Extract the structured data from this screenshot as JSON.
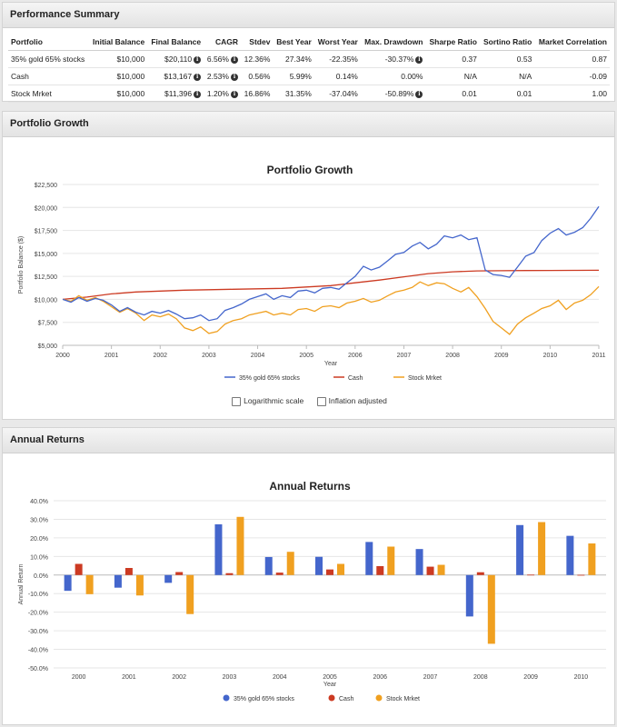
{
  "performance": {
    "title": "Performance Summary",
    "headers": [
      "Portfolio",
      "Initial Balance",
      "Final Balance",
      "CAGR",
      "Stdev",
      "Best Year",
      "Worst Year",
      "Max. Drawdown",
      "Sharpe Ratio",
      "Sortino Ratio",
      "Market Correlation"
    ],
    "rows": [
      {
        "portfolio": "35% gold 65% stocks",
        "initial": "$10,000",
        "final": "$20,110",
        "cagr": "6.56%",
        "stdev": "12.36%",
        "best": "27.34%",
        "worst": "-22.35%",
        "drawdown": "-30.37%",
        "sharpe": "0.37",
        "sortino": "0.53",
        "correlation": "0.87"
      },
      {
        "portfolio": "Cash",
        "initial": "$10,000",
        "final": "$13,167",
        "cagr": "2.53%",
        "stdev": "0.56%",
        "best": "5.99%",
        "worst": "0.14%",
        "drawdown": "0.00%",
        "sharpe": "N/A",
        "sortino": "N/A",
        "correlation": "-0.09"
      },
      {
        "portfolio": "Stock Mrket",
        "initial": "$10,000",
        "final": "$11,396",
        "cagr": "1.20%",
        "stdev": "16.86%",
        "best": "31.35%",
        "worst": "-37.04%",
        "drawdown": "-50.89%",
        "sharpe": "0.01",
        "sortino": "0.01",
        "correlation": "1.00"
      }
    ],
    "info_icon": "info-icon"
  },
  "growth_panel": {
    "header": "Portfolio Growth",
    "options": {
      "log_scale": "Logarithmic scale",
      "inflation": "Inflation adjusted"
    }
  },
  "annual_panel": {
    "header": "Annual Returns"
  },
  "colors": {
    "gold_stocks": "#4466cc",
    "cash": "#cc3a22",
    "stock": "#f0a020"
  },
  "chart_data": [
    {
      "type": "line",
      "title": "Portfolio Growth",
      "xlabel": "Year",
      "ylabel": "Portfolio Balance ($)",
      "xlim": [
        2000,
        2011
      ],
      "ylim": [
        5000,
        22500
      ],
      "x_ticks": [
        "2000",
        "2001",
        "2002",
        "2003",
        "2004",
        "2005",
        "2006",
        "2007",
        "2008",
        "2009",
        "2010",
        "2011"
      ],
      "y_ticks": [
        "$5,000",
        "$7,500",
        "$10,000",
        "$12,500",
        "$15,000",
        "$17,500",
        "$20,000",
        "$22,500"
      ],
      "legend": "bottom",
      "series": [
        {
          "name": "35% gold 65% stocks",
          "color": "#4466cc",
          "points": [
            [
              2000,
              10000
            ],
            [
              2000.17,
              9700
            ],
            [
              2000.33,
              10200
            ],
            [
              2000.5,
              9800
            ],
            [
              2000.67,
              10100
            ],
            [
              2000.83,
              9900
            ],
            [
              2001,
              9400
            ],
            [
              2001.17,
              8700
            ],
            [
              2001.33,
              9100
            ],
            [
              2001.5,
              8600
            ],
            [
              2001.67,
              8300
            ],
            [
              2001.83,
              8700
            ],
            [
              2002,
              8500
            ],
            [
              2002.17,
              8800
            ],
            [
              2002.33,
              8400
            ],
            [
              2002.5,
              7900
            ],
            [
              2002.67,
              8000
            ],
            [
              2002.83,
              8300
            ],
            [
              2003,
              7700
            ],
            [
              2003.17,
              7900
            ],
            [
              2003.33,
              8800
            ],
            [
              2003.5,
              9100
            ],
            [
              2003.67,
              9500
            ],
            [
              2003.83,
              10000
            ],
            [
              2004,
              10300
            ],
            [
              2004.17,
              10600
            ],
            [
              2004.33,
              10000
            ],
            [
              2004.5,
              10400
            ],
            [
              2004.67,
              10200
            ],
            [
              2004.83,
              10900
            ],
            [
              2005,
              11000
            ],
            [
              2005.17,
              10700
            ],
            [
              2005.33,
              11200
            ],
            [
              2005.5,
              11300
            ],
            [
              2005.67,
              11100
            ],
            [
              2005.83,
              11800
            ],
            [
              2006,
              12500
            ],
            [
              2006.17,
              13600
            ],
            [
              2006.33,
              13200
            ],
            [
              2006.5,
              13500
            ],
            [
              2006.67,
              14200
            ],
            [
              2006.83,
              14900
            ],
            [
              2007,
              15100
            ],
            [
              2007.17,
              15800
            ],
            [
              2007.33,
              16200
            ],
            [
              2007.5,
              15500
            ],
            [
              2007.67,
              16000
            ],
            [
              2007.83,
              16900
            ],
            [
              2008,
              16700
            ],
            [
              2008.17,
              17000
            ],
            [
              2008.33,
              16500
            ],
            [
              2008.5,
              16700
            ],
            [
              2008.67,
              13200
            ],
            [
              2008.83,
              12700
            ],
            [
              2009,
              12600
            ],
            [
              2009.17,
              12400
            ],
            [
              2009.33,
              13500
            ],
            [
              2009.5,
              14700
            ],
            [
              2009.67,
              15100
            ],
            [
              2009.83,
              16400
            ],
            [
              2010,
              17200
            ],
            [
              2010.17,
              17700
            ],
            [
              2010.33,
              17000
            ],
            [
              2010.5,
              17300
            ],
            [
              2010.67,
              17800
            ],
            [
              2010.83,
              18800
            ],
            [
              2011,
              20110
            ]
          ]
        },
        {
          "name": "Cash",
          "color": "#cc3a22",
          "points": [
            [
              2000,
              10000
            ],
            [
              2000.5,
              10250
            ],
            [
              2001,
              10600
            ],
            [
              2001.5,
              10800
            ],
            [
              2002,
              10900
            ],
            [
              2002.5,
              11000
            ],
            [
              2003,
              11050
            ],
            [
              2003.5,
              11100
            ],
            [
              2004,
              11150
            ],
            [
              2004.5,
              11200
            ],
            [
              2005,
              11350
            ],
            [
              2005.5,
              11500
            ],
            [
              2006,
              11800
            ],
            [
              2006.5,
              12100
            ],
            [
              2007,
              12450
            ],
            [
              2007.5,
              12800
            ],
            [
              2008,
              13000
            ],
            [
              2008.5,
              13100
            ],
            [
              2009,
              13120
            ],
            [
              2009.5,
              13140
            ],
            [
              2010,
              13150
            ],
            [
              2010.5,
              13160
            ],
            [
              2011,
              13167
            ]
          ]
        },
        {
          "name": "Stock Mrket",
          "color": "#f0a020",
          "points": [
            [
              2000,
              10000
            ],
            [
              2000.17,
              9800
            ],
            [
              2000.33,
              10400
            ],
            [
              2000.5,
              9900
            ],
            [
              2000.67,
              10200
            ],
            [
              2000.83,
              9800
            ],
            [
              2001,
              9200
            ],
            [
              2001.17,
              8600
            ],
            [
              2001.33,
              9000
            ],
            [
              2001.5,
              8500
            ],
            [
              2001.67,
              7700
            ],
            [
              2001.83,
              8300
            ],
            [
              2002,
              8100
            ],
            [
              2002.17,
              8400
            ],
            [
              2002.33,
              7900
            ],
            [
              2002.5,
              6900
            ],
            [
              2002.67,
              6600
            ],
            [
              2002.83,
              7000
            ],
            [
              2003,
              6300
            ],
            [
              2003.17,
              6500
            ],
            [
              2003.33,
              7300
            ],
            [
              2003.5,
              7700
            ],
            [
              2003.67,
              7900
            ],
            [
              2003.83,
              8300
            ],
            [
              2004,
              8500
            ],
            [
              2004.17,
              8700
            ],
            [
              2004.33,
              8300
            ],
            [
              2004.5,
              8500
            ],
            [
              2004.67,
              8300
            ],
            [
              2004.83,
              8900
            ],
            [
              2005,
              9000
            ],
            [
              2005.17,
              8700
            ],
            [
              2005.33,
              9200
            ],
            [
              2005.5,
              9300
            ],
            [
              2005.67,
              9100
            ],
            [
              2005.83,
              9600
            ],
            [
              2006,
              9800
            ],
            [
              2006.17,
              10100
            ],
            [
              2006.33,
              9700
            ],
            [
              2006.5,
              9900
            ],
            [
              2006.67,
              10400
            ],
            [
              2006.83,
              10800
            ],
            [
              2007,
              11000
            ],
            [
              2007.17,
              11300
            ],
            [
              2007.33,
              11900
            ],
            [
              2007.5,
              11500
            ],
            [
              2007.67,
              11800
            ],
            [
              2007.83,
              11700
            ],
            [
              2008,
              11200
            ],
            [
              2008.17,
              10800
            ],
            [
              2008.33,
              11300
            ],
            [
              2008.5,
              10300
            ],
            [
              2008.67,
              9000
            ],
            [
              2008.83,
              7600
            ],
            [
              2009,
              6900
            ],
            [
              2009.17,
              6200
            ],
            [
              2009.33,
              7300
            ],
            [
              2009.5,
              8000
            ],
            [
              2009.67,
              8500
            ],
            [
              2009.83,
              9000
            ],
            [
              2010,
              9300
            ],
            [
              2010.17,
              9900
            ],
            [
              2010.33,
              8900
            ],
            [
              2010.5,
              9600
            ],
            [
              2010.67,
              9900
            ],
            [
              2010.83,
              10500
            ],
            [
              2011,
              11396
            ]
          ]
        }
      ]
    },
    {
      "type": "bar",
      "title": "Annual Returns",
      "xlabel": "Year",
      "ylabel": "Annual Return",
      "ylim": [
        -50,
        40
      ],
      "y_ticks": [
        "40.0%",
        "30.0%",
        "20.0%",
        "10.0%",
        "0.0%",
        "-10.0%",
        "-20.0%",
        "-30.0%",
        "-40.0%",
        "-50.0%"
      ],
      "categories": [
        "2000",
        "2001",
        "2002",
        "2003",
        "2004",
        "2005",
        "2006",
        "2007",
        "2008",
        "2009",
        "2010"
      ],
      "legend": "bottom",
      "series": [
        {
          "name": "35% gold 65% stocks",
          "color": "#4466cc",
          "values": [
            -8.5,
            -6.8,
            -4.2,
            27.3,
            9.7,
            9.8,
            17.8,
            14.0,
            -22.3,
            26.9,
            21.1
          ]
        },
        {
          "name": "Cash",
          "color": "#cc3a22",
          "values": [
            6.0,
            3.8,
            1.6,
            1.0,
            1.3,
            3.0,
            4.8,
            4.5,
            1.5,
            0.2,
            0.1
          ]
        },
        {
          "name": "Stock Mrket",
          "color": "#f0a020",
          "values": [
            -10.3,
            -11.0,
            -21.0,
            31.3,
            12.5,
            6.0,
            15.3,
            5.5,
            -37.0,
            28.5,
            17.0
          ]
        }
      ]
    }
  ]
}
